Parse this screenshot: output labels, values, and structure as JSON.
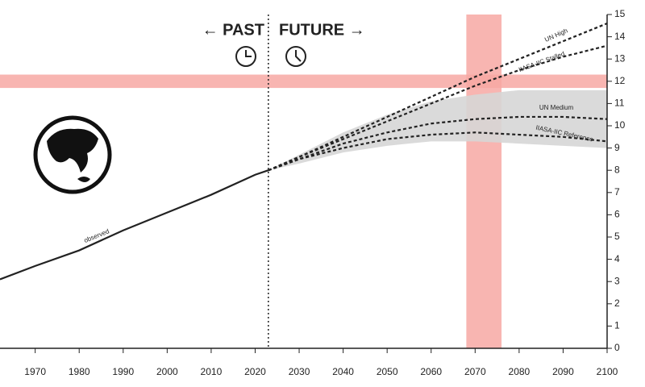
{
  "chart_data": {
    "type": "line",
    "xlim": [
      1962,
      2100
    ],
    "xticks": [
      1970,
      1980,
      1990,
      2000,
      2010,
      2020,
      2030,
      2040,
      2050,
      2060,
      2070,
      2080,
      2090,
      2100
    ],
    "ylim": [
      0,
      15
    ],
    "yticks": [
      0,
      1,
      2,
      3,
      4,
      5,
      6,
      7,
      8,
      9,
      10,
      11,
      12,
      13,
      14,
      15
    ],
    "divider": {
      "x": 2023,
      "past_label": "← PAST",
      "future_label": "FUTURE →"
    },
    "highlight": {
      "x_band": [
        2068,
        2076
      ],
      "y_band": [
        11.7,
        12.3
      ],
      "color": "#f7a8a3"
    },
    "uncertainty": {
      "x": [
        2023,
        2030,
        2040,
        2050,
        2060,
        2070,
        2080,
        2090,
        2100
      ],
      "low": [
        8.0,
        8.3,
        8.8,
        9.1,
        9.3,
        9.3,
        9.2,
        9.1,
        9.0
      ],
      "high": [
        8.0,
        8.7,
        9.7,
        10.5,
        11.1,
        11.4,
        11.6,
        11.6,
        11.6
      ],
      "color": "#d6d6d6"
    },
    "series": [
      {
        "name": "observed",
        "color": "#222222",
        "dashed": false,
        "x": [
          1962,
          1970,
          1980,
          1990,
          2000,
          2010,
          2020,
          2023
        ],
        "values": [
          3.1,
          3.7,
          4.4,
          5.3,
          6.1,
          6.9,
          7.8,
          8.0
        ]
      },
      {
        "name": "UN High",
        "color": "#222222",
        "dashed": true,
        "x": [
          2023,
          2030,
          2040,
          2050,
          2060,
          2070,
          2080,
          2090,
          2100
        ],
        "values": [
          8.0,
          8.6,
          9.5,
          10.4,
          11.3,
          12.2,
          13.0,
          13.8,
          14.6
        ]
      },
      {
        "name": "IIASA-IIC Stalled",
        "color": "#222222",
        "dashed": true,
        "x": [
          2023,
          2030,
          2040,
          2050,
          2060,
          2070,
          2080,
          2090,
          2100
        ],
        "values": [
          8.0,
          8.6,
          9.4,
          10.2,
          11.0,
          11.8,
          12.5,
          13.1,
          13.6
        ]
      },
      {
        "name": "UN Medium",
        "color": "#222222",
        "dashed": true,
        "x": [
          2023,
          2030,
          2040,
          2050,
          2060,
          2070,
          2080,
          2090,
          2100
        ],
        "values": [
          8.0,
          8.5,
          9.2,
          9.7,
          10.1,
          10.3,
          10.4,
          10.4,
          10.3
        ]
      },
      {
        "name": "IIASA-IIC Reference",
        "color": "#222222",
        "dashed": true,
        "x": [
          2023,
          2030,
          2040,
          2050,
          2060,
          2070,
          2080,
          2090,
          2100
        ],
        "values": [
          8.0,
          8.5,
          9.0,
          9.4,
          9.6,
          9.7,
          9.6,
          9.5,
          9.3
        ]
      }
    ]
  }
}
